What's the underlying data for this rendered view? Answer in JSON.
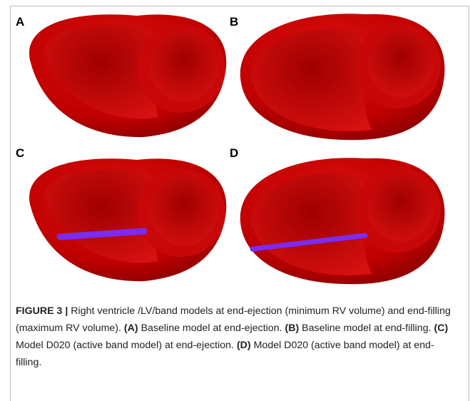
{
  "panels": [
    {
      "label": "A"
    },
    {
      "label": "B"
    },
    {
      "label": "C"
    },
    {
      "label": "D"
    }
  ],
  "caption": {
    "figure_label": "FIGURE 3 |",
    "intro": "Right ventricle /LV/band models at end-ejection (minimum RV volume) and end-filling (maximum RV volume).",
    "items": [
      {
        "label": "(A)",
        "text": "Baseline model at end-ejection."
      },
      {
        "label": "(B)",
        "text": "Baseline model at end-filling."
      },
      {
        "label": "(C)",
        "text": "Model D020 (active band model) at end-ejection."
      },
      {
        "label": "(D)",
        "text": "Model D020 (active band model) at end-filling."
      }
    ]
  }
}
